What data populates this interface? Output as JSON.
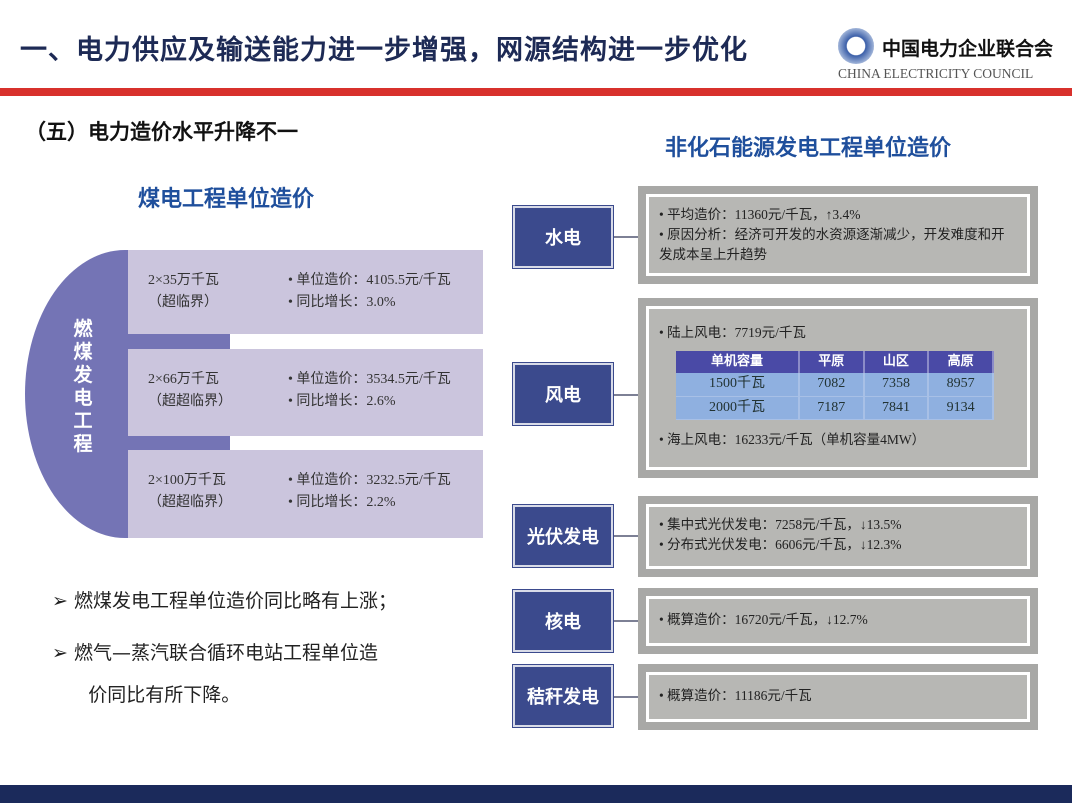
{
  "header": {
    "title": "一、电力供应及输送能力进一步增强，网源结构进一步优化",
    "logo_cn": "中国电力企业联合会",
    "logo_en": "CHINA ELECTRICITY COUNCIL"
  },
  "section": {
    "subtitle": "（五）电力造价水平升降不一"
  },
  "coal": {
    "title": "煤电工程单位造价",
    "side_label": "燃煤发电工程",
    "rows": [
      {
        "unit": "2×35万千瓦",
        "type": "（超临界）",
        "cost": "• 单位造价：4105.5元/千瓦",
        "growth": "• 同比增长：3.0%"
      },
      {
        "unit": "2×66万千瓦",
        "type": "（超超临界）",
        "cost": "• 单位造价：3534.5元/千瓦",
        "growth": "• 同比增长：2.6%"
      },
      {
        "unit": "2×100万千瓦",
        "type": "（超超临界）",
        "cost": "• 单位造价：3232.5元/千瓦",
        "growth": "• 同比增长：2.2%"
      }
    ]
  },
  "bullets": [
    "➢  燃煤发电工程单位造价同比略有上涨；",
    "➢  燃气—蒸汽联合循环电站工程单位造",
    "      价同比有所下降。"
  ],
  "nonfossil": {
    "title": "非化石能源发电工程单位造价",
    "hydro": {
      "label": "水电",
      "lines": [
        "• 平均造价：11360元/千瓦，↑3.4%",
        "• 原因分析：经济可开发的水资源逐渐减少，开发难度和开发成本呈上升趋势"
      ]
    },
    "wind": {
      "label": "风电",
      "onshore": "• 陆上风电：7719元/千瓦",
      "table": {
        "headers": [
          "单机容量",
          "平原",
          "山区",
          "高原"
        ],
        "rows": [
          [
            "1500千瓦",
            "7082",
            "7358",
            "8957"
          ],
          [
            "2000千瓦",
            "7187",
            "7841",
            "9134"
          ]
        ]
      },
      "offshore": "• 海上风电：16233元/千瓦（单机容量4MW）"
    },
    "solar": {
      "label": "光伏发电",
      "lines": [
        "• 集中式光伏发电：7258元/千瓦，↓13.5%",
        "• 分布式光伏发电：6606元/千瓦，↓12.3%"
      ]
    },
    "nuclear": {
      "label": "核电",
      "lines": [
        "• 概算造价：16720元/千瓦，↓12.7%"
      ]
    },
    "straw": {
      "label": "秸秆发电",
      "lines": [
        "• 概算造价：11186元/千瓦"
      ]
    }
  }
}
